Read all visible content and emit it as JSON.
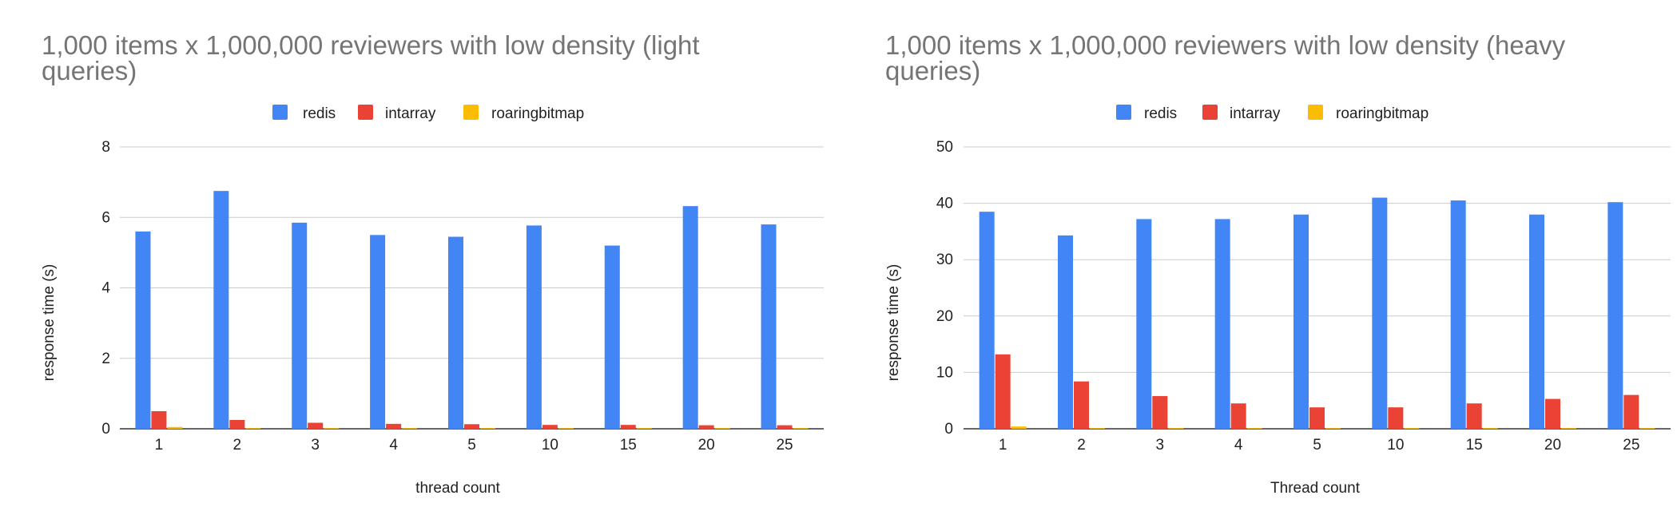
{
  "chart_data": [
    {
      "type": "bar",
      "title_lines": [
        "1,000 items x 1,000,000 reviewers with low density (light",
        "queries)"
      ],
      "xlabel": "thread count",
      "ylabel": "response time (s)",
      "ylim": [
        0,
        8
      ],
      "yticks": [
        0,
        2,
        4,
        6,
        8
      ],
      "grid": true,
      "legend_position": "top",
      "categories": [
        "1",
        "2",
        "3",
        "4",
        "5",
        "10",
        "15",
        "20",
        "25"
      ],
      "series": [
        {
          "name": "redis",
          "color": "#4285f4",
          "values": [
            5.6,
            6.75,
            5.85,
            5.5,
            5.45,
            5.77,
            5.2,
            6.32,
            5.8
          ]
        },
        {
          "name": "intarray",
          "color": "#ea4335",
          "values": [
            0.5,
            0.25,
            0.17,
            0.14,
            0.13,
            0.11,
            0.11,
            0.1,
            0.1
          ]
        },
        {
          "name": "roaringbitmap",
          "color": "#fbbc04",
          "values": [
            0.05,
            0.01,
            0.01,
            0.01,
            0.01,
            0.01,
            0.01,
            0.01,
            0.01
          ]
        }
      ]
    },
    {
      "type": "bar",
      "title_lines": [
        "1,000 items x 1,000,000 reviewers with low density (heavy",
        "queries)"
      ],
      "xlabel": "Thread count",
      "ylabel": "response time (s)",
      "ylim": [
        0,
        50
      ],
      "yticks": [
        0,
        10,
        20,
        30,
        40,
        50
      ],
      "grid": true,
      "legend_position": "top",
      "categories": [
        "1",
        "2",
        "3",
        "4",
        "5",
        "10",
        "15",
        "20",
        "25"
      ],
      "series": [
        {
          "name": "redis",
          "color": "#4285f4",
          "values": [
            38.5,
            34.3,
            37.2,
            37.2,
            38.0,
            41.0,
            40.5,
            38.0,
            40.2
          ]
        },
        {
          "name": "intarray",
          "color": "#ea4335",
          "values": [
            13.2,
            8.4,
            5.8,
            4.5,
            3.8,
            3.8,
            4.5,
            5.3,
            6.0
          ]
        },
        {
          "name": "roaringbitmap",
          "color": "#fbbc04",
          "values": [
            0.4,
            0.05,
            0.05,
            0.05,
            0.05,
            0.05,
            0.05,
            0.05,
            0.05
          ]
        }
      ]
    }
  ]
}
